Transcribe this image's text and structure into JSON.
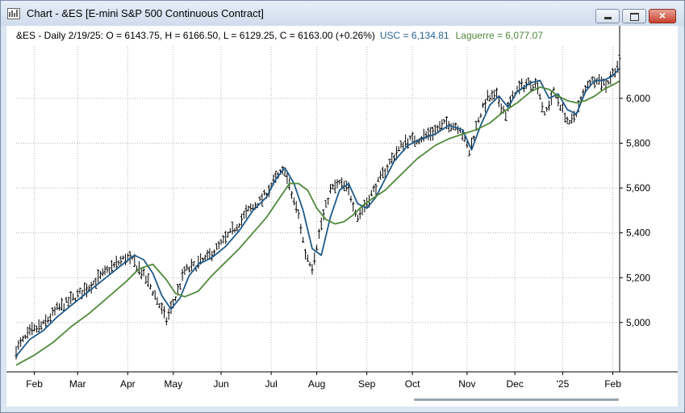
{
  "window": {
    "title": "Chart - &ES [E-mini S&P 500 Continuous Contract]",
    "buttons": {
      "minimize": "minimize",
      "maximize": "maximize",
      "close": "×"
    }
  },
  "legend": {
    "symbol_line": "&ES - Daily 2/19/25:  O = 6143.75,  H = 6166.50,  L = 6129.25,  C = 6163.00 (+0.26%)",
    "usc_label": "USC = 6,134.81",
    "laguerre_label": "Laguerre = 6,077.07"
  },
  "colors": {
    "usc": "#1f5a8a",
    "laguerre": "#4f8a3a",
    "bars": "#000000",
    "grid": "#b5b5b5"
  },
  "chart_data": {
    "type": "line",
    "title": "&ES - Daily",
    "ylim": [
      4780,
      6230
    ],
    "y_ticks": [
      5000,
      5200,
      5400,
      5600,
      5800,
      6000
    ],
    "y_tick_labels": [
      "5,000",
      "5,200",
      "5,400",
      "5,600",
      "5,800",
      "6,000"
    ],
    "x_range": [
      0,
      265
    ],
    "x_ticks": [
      8,
      27,
      49,
      69,
      90,
      112,
      132,
      154,
      174,
      198,
      219,
      240,
      262
    ],
    "x_tick_labels": [
      "Feb",
      "Mar",
      "Apr",
      "May",
      "Jun",
      "Jul",
      "Aug",
      "Sep",
      "Oct",
      "Nov",
      "Dec",
      "'25",
      "Feb"
    ],
    "bar_anchors": [
      [
        0,
        4880
      ],
      [
        6,
        4955
      ],
      [
        12,
        4990
      ],
      [
        18,
        5060
      ],
      [
        24,
        5100
      ],
      [
        32,
        5160
      ],
      [
        40,
        5230
      ],
      [
        48,
        5290
      ],
      [
        52,
        5270
      ],
      [
        58,
        5180
      ],
      [
        62,
        5100
      ],
      [
        66,
        5010
      ],
      [
        70,
        5110
      ],
      [
        74,
        5230
      ],
      [
        78,
        5250
      ],
      [
        84,
        5290
      ],
      [
        90,
        5350
      ],
      [
        96,
        5420
      ],
      [
        102,
        5500
      ],
      [
        108,
        5550
      ],
      [
        114,
        5640
      ],
      [
        118,
        5680
      ],
      [
        121,
        5570
      ],
      [
        124,
        5480
      ],
      [
        127,
        5310
      ],
      [
        130,
        5250
      ],
      [
        134,
        5440
      ],
      [
        138,
        5590
      ],
      [
        142,
        5620
      ],
      [
        146,
        5590
      ],
      [
        150,
        5470
      ],
      [
        153,
        5520
      ],
      [
        157,
        5590
      ],
      [
        161,
        5660
      ],
      [
        165,
        5730
      ],
      [
        171,
        5810
      ],
      [
        177,
        5820
      ],
      [
        183,
        5850
      ],
      [
        189,
        5890
      ],
      [
        195,
        5870
      ],
      [
        199,
        5760
      ],
      [
        203,
        5910
      ],
      [
        207,
        6000
      ],
      [
        211,
        6010
      ],
      [
        215,
        5930
      ],
      [
        219,
        6030
      ],
      [
        225,
        6070
      ],
      [
        229,
        6060
      ],
      [
        232,
        5920
      ],
      [
        236,
        6030
      ],
      [
        240,
        5950
      ],
      [
        243,
        5880
      ],
      [
        247,
        5960
      ],
      [
        251,
        6070
      ],
      [
        255,
        6090
      ],
      [
        259,
        6060
      ],
      [
        263,
        6130
      ],
      [
        265,
        6163
      ]
    ],
    "series": [
      {
        "name": "USC",
        "color": "#1f5a8a",
        "x": [
          0,
          6,
          12,
          18,
          24,
          32,
          40,
          48,
          52,
          56,
          60,
          64,
          68,
          72,
          76,
          80,
          86,
          92,
          98,
          104,
          110,
          114,
          118,
          122,
          126,
          130,
          134,
          138,
          142,
          146,
          150,
          154,
          158,
          162,
          166,
          172,
          178,
          184,
          190,
          196,
          200,
          204,
          208,
          212,
          216,
          220,
          226,
          230,
          234,
          238,
          242,
          246,
          250,
          254,
          258,
          262,
          265
        ],
        "y": [
          4850,
          4925,
          4965,
          5025,
          5075,
          5140,
          5205,
          5270,
          5300,
          5280,
          5220,
          5120,
          5060,
          5110,
          5210,
          5260,
          5290,
          5340,
          5410,
          5500,
          5560,
          5640,
          5690,
          5620,
          5500,
          5330,
          5300,
          5470,
          5590,
          5620,
          5530,
          5510,
          5560,
          5640,
          5720,
          5790,
          5820,
          5840,
          5880,
          5860,
          5770,
          5880,
          5970,
          6010,
          5960,
          6030,
          6070,
          6080,
          6000,
          6020,
          5950,
          5930,
          6030,
          6080,
          6080,
          6100,
          6134.81
        ]
      },
      {
        "name": "Laguerre",
        "color": "#4f8a3a",
        "x": [
          0,
          8,
          16,
          24,
          32,
          40,
          48,
          54,
          60,
          66,
          70,
          74,
          80,
          86,
          92,
          98,
          104,
          110,
          116,
          120,
          124,
          128,
          132,
          136,
          140,
          144,
          148,
          152,
          156,
          162,
          168,
          176,
          184,
          190,
          196,
          202,
          208,
          214,
          220,
          226,
          230,
          234,
          238,
          242,
          246,
          250,
          254,
          258,
          262,
          265
        ],
        "y": [
          4810,
          4855,
          4910,
          4980,
          5040,
          5110,
          5180,
          5240,
          5260,
          5190,
          5130,
          5115,
          5140,
          5210,
          5270,
          5330,
          5400,
          5470,
          5560,
          5620,
          5620,
          5590,
          5510,
          5460,
          5440,
          5450,
          5480,
          5520,
          5550,
          5590,
          5650,
          5730,
          5790,
          5820,
          5840,
          5860,
          5890,
          5940,
          5980,
          6030,
          6050,
          6040,
          6010,
          5990,
          5980,
          5990,
          6010,
          6040,
          6060,
          6077.07
        ]
      }
    ]
  }
}
